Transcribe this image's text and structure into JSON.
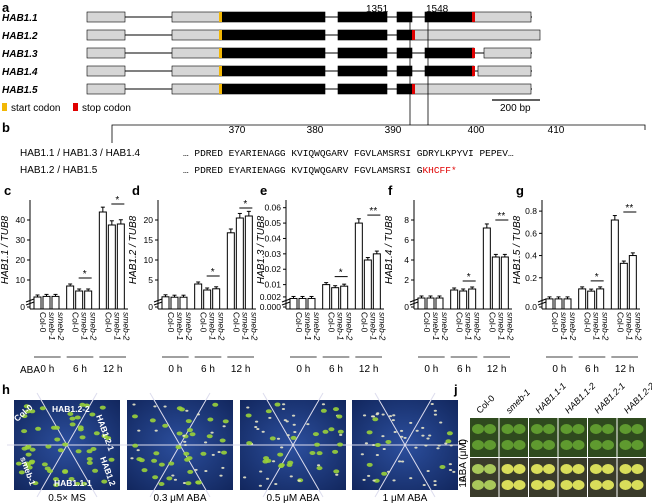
{
  "panel_a": {
    "label": "a",
    "genes": [
      "HAB1.1",
      "HAB1.2",
      "HAB1.3",
      "HAB1.4",
      "HAB1.5"
    ],
    "position_labels": [
      "1351",
      "1548"
    ],
    "legend": {
      "start": "start codon",
      "stop": "stop codon",
      "scale": "200 bp"
    },
    "colors": {
      "utr": "#d6d6d6",
      "cds": "#000000",
      "start": "#f2b705",
      "stop": "#e00000"
    }
  },
  "panel_b": {
    "label": "b",
    "ruler": [
      "370",
      "380",
      "390",
      "400",
      "410"
    ],
    "row1_name": "HAB1.1 / HAB1.3 / HAB1.4",
    "row1_seq": "… PDRED EYARIENAGG KVIQWQGARV FGVLAMSRSI GDRYLKPYVI PEPEV…",
    "row2_name": "HAB1.2 / HAB1.5",
    "row2_seq": "… PDRED EYARIENAGG KVIQWQGARV FGVLAMSRSI G",
    "row2_red": "KHCFF*"
  },
  "chart_data": [
    {
      "type": "bar",
      "panel": "c",
      "ylabel": "HAB1.1 / TUB8",
      "ylim": [
        0,
        50
      ],
      "yticks": [
        "0",
        "10",
        "20",
        "30",
        "40"
      ],
      "categories": [
        "Col-0",
        "smeb-1",
        "smeb-2"
      ],
      "conditions": [
        "0 h",
        "6 h",
        "12 h"
      ],
      "values": [
        [
          1.5,
          1.8,
          1.8
        ],
        [
          7.0,
          4.5,
          4.5
        ],
        [
          44,
          37.5,
          38
        ]
      ],
      "sig": [
        "",
        "*",
        "*"
      ]
    },
    {
      "type": "bar",
      "panel": "d",
      "ylabel": "HAB1.2 / TUB8",
      "ylim": [
        0,
        25
      ],
      "yticks": [
        "0",
        "5",
        "10",
        "15",
        "20"
      ],
      "categories": [
        "Col-0",
        "smeb-1",
        "smeb-2"
      ],
      "conditions": [
        "0 h",
        "6 h",
        "12 h"
      ],
      "values": [
        [
          0.8,
          0.7,
          0.7
        ],
        [
          4.0,
          2.5,
          2.8
        ],
        [
          16.8,
          20.5,
          21.0
        ]
      ],
      "sig": [
        "",
        "*",
        "*"
      ]
    },
    {
      "type": "bar",
      "panel": "e",
      "ylabel": "HAB1.3 / TUB8",
      "ylim": [
        0,
        0.065
      ],
      "yticks": [
        "0.000",
        "0.002",
        "0.01",
        "0.02",
        "0.03",
        "0.04",
        "0.05",
        "0.06"
      ],
      "categories": [
        "Col-0",
        "smeb-1",
        "smeb-2"
      ],
      "conditions": [
        "0 h",
        "6 h",
        "12 h"
      ],
      "values": [
        [
          0.001,
          0.001,
          0.001
        ],
        [
          0.01,
          0.008,
          0.009
        ],
        [
          0.05,
          0.026,
          0.03
        ]
      ],
      "sig": [
        "",
        "*",
        "**"
      ]
    },
    {
      "type": "bar",
      "panel": "f",
      "ylabel": "HAB1.4 / TUB8",
      "ylim": [
        0,
        10
      ],
      "yticks": [
        "0",
        "2",
        "4",
        "6",
        "8"
      ],
      "categories": [
        "Col-0",
        "smeb-1",
        "smeb-2"
      ],
      "conditions": [
        "0 h",
        "6 h",
        "12 h"
      ],
      "values": [
        [
          0.2,
          0.2,
          0.2
        ],
        [
          1.0,
          0.9,
          1.1
        ],
        [
          7.2,
          4.3,
          4.3
        ]
      ],
      "sig": [
        "",
        "*",
        "**"
      ]
    },
    {
      "type": "bar",
      "panel": "g",
      "ylabel": "HAB1.5 / TUB8",
      "ylim": [
        0,
        0.9
      ],
      "yticks": [
        "0.0",
        "0.2",
        "0.4",
        "0.6",
        "0.8"
      ],
      "categories": [
        "Col-0",
        "smeb-1",
        "smeb-2"
      ],
      "conditions": [
        "0 h",
        "6 h",
        "12 h"
      ],
      "values": [
        [
          0.01,
          0.01,
          0.01
        ],
        [
          0.1,
          0.08,
          0.1
        ],
        [
          0.72,
          0.33,
          0.4
        ]
      ],
      "sig": [
        "",
        "*",
        "**"
      ]
    }
  ],
  "bar_axis": {
    "aba_label": "ABA"
  },
  "panel_h": {
    "label": "h",
    "plates": [
      "0.5× MS",
      "0.3 μM ABA",
      "0.5 μM ABA",
      "1 μM ABA"
    ],
    "sector_labels": [
      "Col-0",
      "HAB1.2-2",
      "HAB1.2-1",
      "HAB1.2",
      "HAB1.1-1",
      "smeb-1"
    ]
  },
  "panel_j": {
    "label": "j",
    "cols": [
      "Col-0",
      "smeb-1",
      "HAB1.1-1",
      "HAB1.1-2",
      "HAB1.2-1",
      "HAB1.2-2"
    ],
    "rows": [
      "0",
      "10"
    ],
    "ylabel": "ABA (μM)"
  }
}
